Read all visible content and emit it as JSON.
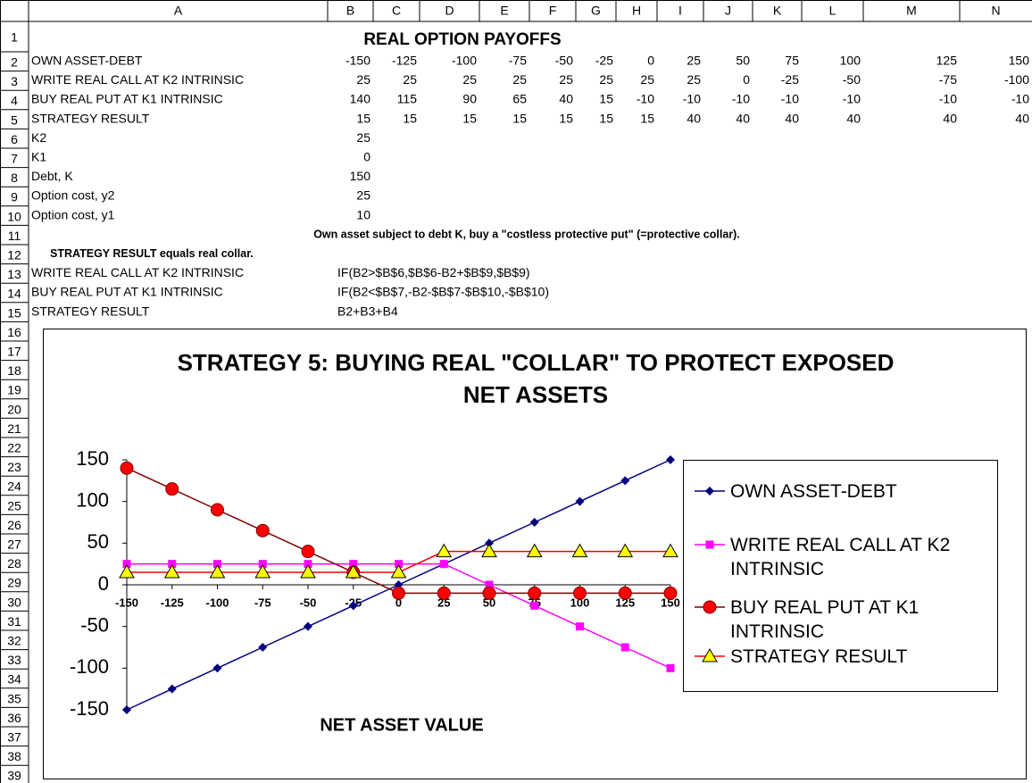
{
  "sheet": {
    "columns": [
      "A",
      "B",
      "C",
      "D",
      "E",
      "F",
      "G",
      "H",
      "I",
      "J",
      "K",
      "L",
      "M",
      "N"
    ],
    "row_numbers": [
      1,
      2,
      3,
      4,
      5,
      6,
      7,
      8,
      9,
      10,
      11,
      12,
      13,
      14,
      15,
      16,
      17,
      18,
      19,
      20,
      21,
      22,
      23,
      24,
      25,
      26,
      27,
      28,
      29,
      30,
      31,
      32,
      33,
      34,
      35,
      36,
      37,
      38,
      39
    ],
    "title": "REAL OPTION PAYOFFS",
    "table": {
      "rows": [
        {
          "label": "OWN ASSET-DEBT",
          "values": [
            -150,
            -125,
            -100,
            -75,
            -50,
            -25,
            0,
            25,
            50,
            75,
            100,
            125,
            150
          ]
        },
        {
          "label": "WRITE REAL CALL AT K2 INTRINSIC",
          "values": [
            25,
            25,
            25,
            25,
            25,
            25,
            25,
            25,
            0,
            -25,
            -50,
            -75,
            -100
          ]
        },
        {
          "label": "BUY REAL PUT AT K1 INTRINSIC",
          "values": [
            140,
            115,
            90,
            65,
            40,
            15,
            -10,
            -10,
            -10,
            -10,
            -10,
            -10,
            -10
          ]
        },
        {
          "label": "STRATEGY RESULT",
          "values": [
            15,
            15,
            15,
            15,
            15,
            15,
            15,
            40,
            40,
            40,
            40,
            40,
            40
          ]
        }
      ]
    },
    "params": [
      {
        "label": "K2",
        "value": 25
      },
      {
        "label": "K1",
        "value": 0
      },
      {
        "label": "Debt, K",
        "value": 150
      },
      {
        "label": "Option cost, y2",
        "value": 25
      },
      {
        "label": "Option cost, y1",
        "value": 10
      }
    ],
    "note": "Own asset subject to debt K, buy a \"costless protective put\" (=protective collar).",
    "subnote": "STRATEGY RESULT equals real collar.",
    "formulas": [
      {
        "label": "WRITE REAL CALL AT K2 INTRINSIC",
        "formula": "IF(B2>$B$6,$B$6-B2+$B$9,$B$9)"
      },
      {
        "label": "BUY REAL PUT AT K1 INTRINSIC",
        "formula": "IF(B2<$B$7,-B2-$B$7-$B$10,-$B$10)"
      },
      {
        "label": "STRATEGY RESULT",
        "formula": "B2+B3+B4"
      }
    ]
  },
  "chart_data": {
    "type": "line",
    "title": "STRATEGY 5: BUYING REAL \"COLLAR\" TO PROTECT EXPOSED NET ASSETS",
    "x_label": "NET ASSET VALUE",
    "categories": [
      -150,
      -125,
      -100,
      -75,
      -50,
      -25,
      0,
      25,
      50,
      75,
      100,
      125,
      150
    ],
    "series": [
      {
        "name": "OWN ASSET-DEBT",
        "color": "#000080",
        "marker": "diamond",
        "marker_color": "#000080",
        "values": [
          -150,
          -125,
          -100,
          -75,
          -50,
          -25,
          0,
          25,
          50,
          75,
          100,
          125,
          150
        ]
      },
      {
        "name": "WRITE REAL CALL AT K2 INTRINSIC",
        "color": "#ff00ff",
        "marker": "square",
        "marker_color": "#ff00ff",
        "values": [
          25,
          25,
          25,
          25,
          25,
          25,
          25,
          25,
          0,
          -25,
          -50,
          -75,
          -100
        ]
      },
      {
        "name": "BUY REAL PUT AT K1 INTRINSIC",
        "color": "#800000",
        "marker": "circle",
        "marker_color": "#ff0000",
        "values": [
          140,
          115,
          90,
          65,
          40,
          15,
          -10,
          -10,
          -10,
          -10,
          -10,
          -10,
          -10
        ]
      },
      {
        "name": "STRATEGY RESULT",
        "color": "#ff0000",
        "marker": "triangle",
        "marker_color": "#ffff00",
        "values": [
          15,
          15,
          15,
          15,
          15,
          15,
          15,
          40,
          40,
          40,
          40,
          40,
          40
        ]
      }
    ],
    "ylim": [
      -150,
      150
    ],
    "yticks": [
      -150,
      -100,
      -50,
      0,
      50,
      100,
      150
    ],
    "grid": false,
    "legend": "right"
  }
}
